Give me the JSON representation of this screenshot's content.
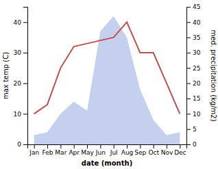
{
  "chart_data": {
    "type": "line",
    "categories": [
      "Jan",
      "Feb",
      "Mar",
      "Apr",
      "May",
      "Jun",
      "Jul",
      "Aug",
      "Sep",
      "Oct",
      "Nov",
      "Dec"
    ],
    "xlabel": "date (month)",
    "ylabel": "max temp (C)",
    "y2label": "med. precipitation (kg/m2)",
    "series": [
      {
        "type": "area",
        "axis": "y2",
        "color": "#b0c0e8",
        "values": [
          3,
          4,
          10,
          14,
          11,
          37,
          42,
          35,
          18,
          8,
          3,
          4
        ]
      },
      {
        "type": "line",
        "color": "#c0504d",
        "values": [
          10,
          13,
          25,
          32,
          33,
          34,
          35,
          40,
          30,
          30,
          20,
          10
        ]
      }
    ],
    "ylim": [
      0,
      45
    ],
    "yticks": [
      0,
      10,
      20,
      30,
      40
    ],
    "y2lim": [
      0,
      45
    ],
    "y2ticks": [
      0,
      5,
      10,
      15,
      20,
      25,
      30,
      35,
      40,
      45
    ],
    "grid": false
  }
}
